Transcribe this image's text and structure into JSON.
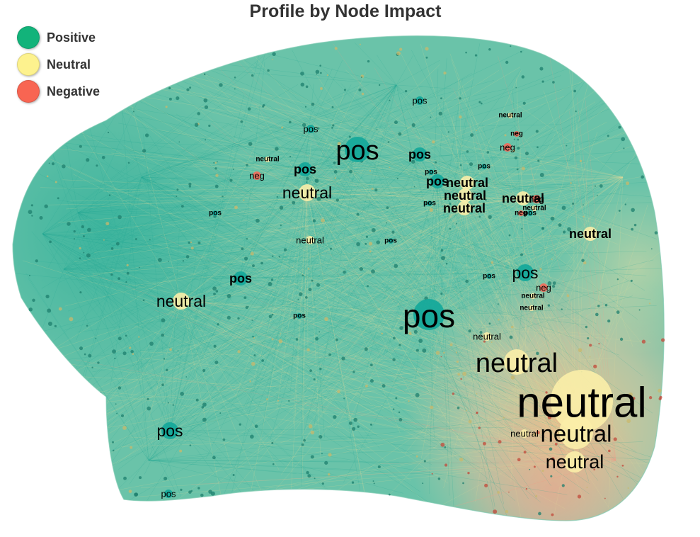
{
  "title": "Profile by Node Impact",
  "legend": [
    {
      "label": "Positive",
      "color": "#12b37a"
    },
    {
      "label": "Neutral",
      "color": "#fdf28e"
    },
    {
      "label": "Negative",
      "color": "#f86552"
    }
  ],
  "colors": {
    "positive_node": "#14a89a",
    "neutral_node": "#fbeea8",
    "negative_node": "#f26d5b",
    "positive_edge": "#24a894",
    "neutral_edge": "#e6dc9c",
    "negative_edge": "#f0a08a"
  },
  "labels": [
    {
      "text": "neutral",
      "sentiment": "neutral",
      "impact": 10
    },
    {
      "text": "pos",
      "sentiment": "positive",
      "impact": 8
    },
    {
      "text": "neutral",
      "sentiment": "neutral",
      "impact": 7
    },
    {
      "text": "pos",
      "sentiment": "positive",
      "impact": 7
    },
    {
      "text": "neutral",
      "sentiment": "neutral",
      "impact": 6
    },
    {
      "text": "neutral",
      "sentiment": "neutral",
      "impact": 5
    },
    {
      "text": "neutral",
      "sentiment": "neutral",
      "impact": 4
    },
    {
      "text": "neutral",
      "sentiment": "neutral",
      "impact": 4
    },
    {
      "text": "pos",
      "sentiment": "positive",
      "impact": 4
    },
    {
      "text": "pos",
      "sentiment": "positive",
      "impact": 4
    },
    {
      "text": "pos",
      "sentiment": "positive",
      "impact": 3
    },
    {
      "text": "pos",
      "sentiment": "positive",
      "impact": 3
    },
    {
      "text": "pos",
      "sentiment": "positive",
      "impact": 3
    },
    {
      "text": "pos",
      "sentiment": "positive",
      "impact": 3
    },
    {
      "text": "neutral",
      "sentiment": "neutral",
      "impact": 3
    },
    {
      "text": "neutral",
      "sentiment": "neutral",
      "impact": 3
    },
    {
      "text": "neutral",
      "sentiment": "neutral",
      "impact": 3
    },
    {
      "text": "neutral",
      "sentiment": "neutral",
      "impact": 3
    },
    {
      "text": "neutral",
      "sentiment": "neutral",
      "impact": 3
    },
    {
      "text": "pos",
      "sentiment": "positive",
      "impact": 2
    },
    {
      "text": "pos",
      "sentiment": "positive",
      "impact": 2
    },
    {
      "text": "pos",
      "sentiment": "positive",
      "impact": 2
    },
    {
      "text": "neg",
      "sentiment": "negative",
      "impact": 2
    },
    {
      "text": "neg",
      "sentiment": "negative",
      "impact": 2
    },
    {
      "text": "neg",
      "sentiment": "negative",
      "impact": 2
    },
    {
      "text": "neg",
      "sentiment": "negative",
      "impact": 2
    },
    {
      "text": "neutral",
      "sentiment": "neutral",
      "impact": 2
    },
    {
      "text": "neutral",
      "sentiment": "neutral",
      "impact": 2
    },
    {
      "text": "neutral",
      "sentiment": "neutral",
      "impact": 2
    },
    {
      "text": "pos",
      "sentiment": "positive",
      "impact": 1
    },
    {
      "text": "pos",
      "sentiment": "positive",
      "impact": 1
    },
    {
      "text": "pos",
      "sentiment": "positive",
      "impact": 1
    },
    {
      "text": "pos",
      "sentiment": "positive",
      "impact": 1
    },
    {
      "text": "pos",
      "sentiment": "positive",
      "impact": 1
    },
    {
      "text": "pos",
      "sentiment": "positive",
      "impact": 1
    },
    {
      "text": "pos",
      "sentiment": "positive",
      "impact": 1
    },
    {
      "text": "pos",
      "sentiment": "positive",
      "impact": 1
    },
    {
      "text": "neutral",
      "sentiment": "neutral",
      "impact": 1
    },
    {
      "text": "neutral",
      "sentiment": "neutral",
      "impact": 1
    },
    {
      "text": "neutral",
      "sentiment": "neutral",
      "impact": 1
    },
    {
      "text": "neutral",
      "sentiment": "neutral",
      "impact": 1
    },
    {
      "text": "neutral",
      "sentiment": "neutral",
      "impact": 1
    },
    {
      "text": "neg",
      "sentiment": "negative",
      "impact": 1
    },
    {
      "text": "neg",
      "sentiment": "negative",
      "impact": 1
    }
  ]
}
